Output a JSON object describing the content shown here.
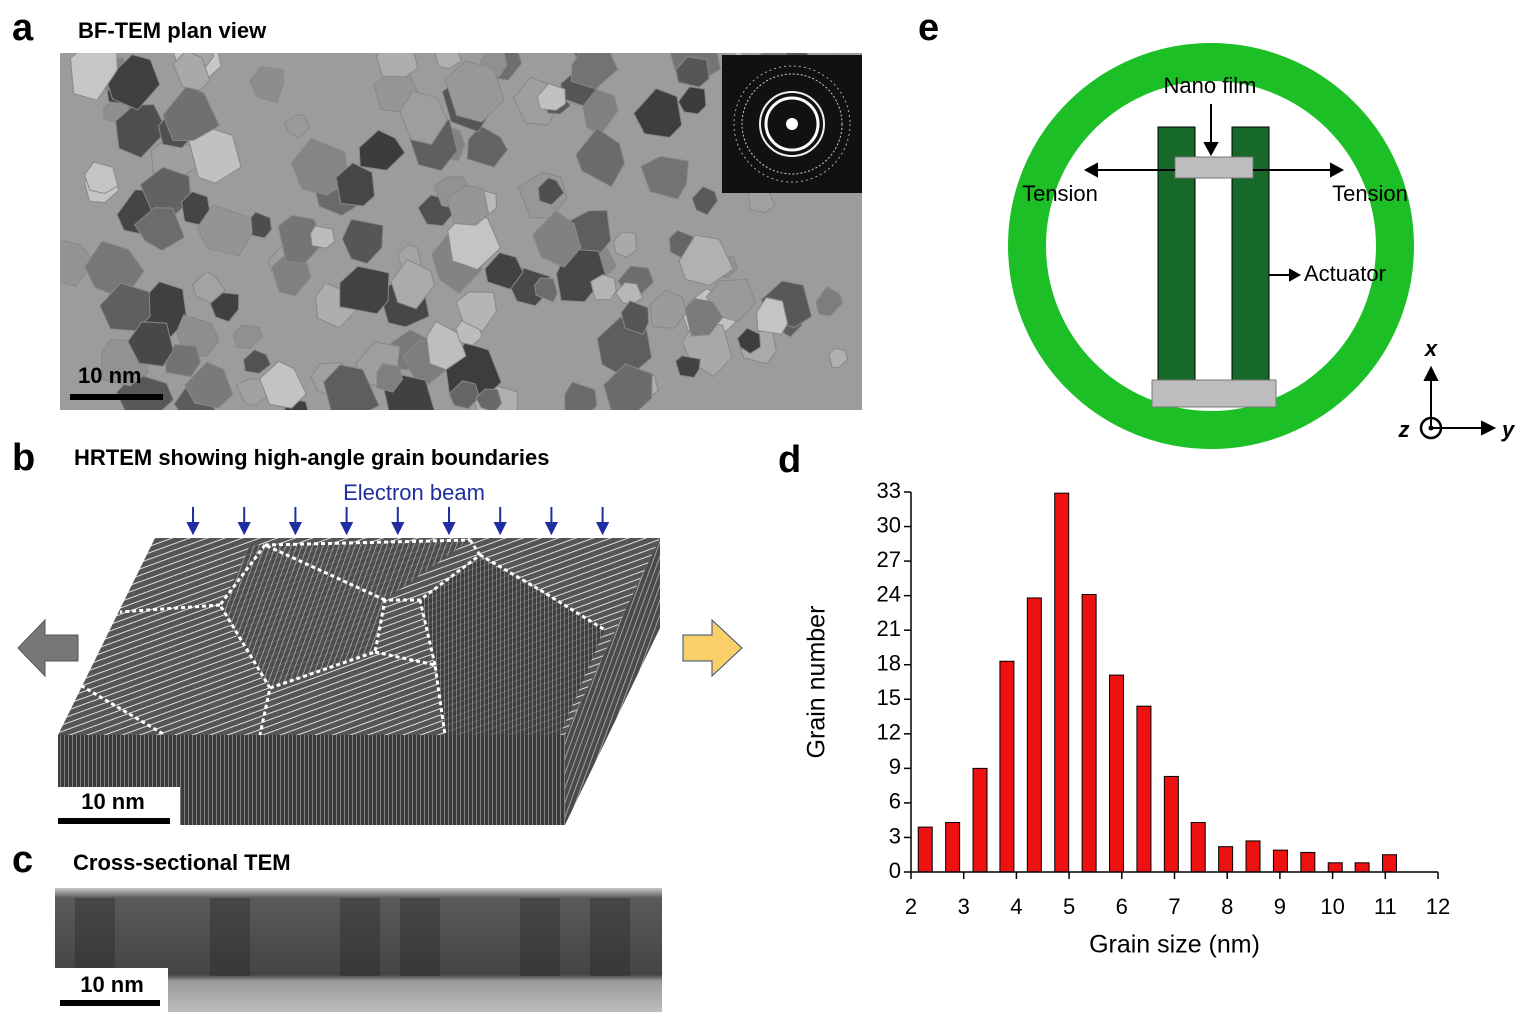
{
  "panels": {
    "a": {
      "label": "a",
      "title": "BF-TEM plan view",
      "scale_bar": "10 nm"
    },
    "b": {
      "label": "b",
      "title": "HRTEM showing high-angle grain boundaries",
      "annotation": "Electron beam",
      "scale_bar": "10 nm"
    },
    "c": {
      "label": "c",
      "title": "Cross-sectional TEM",
      "scale_bar": "10 nm"
    },
    "d": {
      "label": "d"
    },
    "e": {
      "label": "e",
      "film": "Nano film",
      "tension_left": "Tension",
      "tension_right": "Tension",
      "actuator": "Actuator",
      "axis_x": "x",
      "axis_y": "y",
      "axis_z": "z"
    }
  },
  "chart_data": {
    "type": "bar",
    "x_label": "Grain size (nm)",
    "y_label": "Grain number",
    "x": [
      2.27,
      2.79,
      3.31,
      3.82,
      4.34,
      4.86,
      5.38,
      5.9,
      6.42,
      6.94,
      7.45,
      7.97,
      8.49,
      9.01,
      9.53,
      10.05,
      10.56,
      11.08
    ],
    "values": [
      3.9,
      4.3,
      9.0,
      18.3,
      23.8,
      32.9,
      24.1,
      17.1,
      14.4,
      8.3,
      4.3,
      2.2,
      2.7,
      1.9,
      1.7,
      0.8,
      0.8,
      1.5
    ],
    "color": "#ee1111",
    "xlim": [
      2,
      12
    ],
    "xticks": [
      2,
      3,
      4,
      5,
      6,
      7,
      8,
      9,
      10,
      11,
      12
    ],
    "ylim": [
      0,
      33
    ],
    "yticks": [
      0,
      3,
      6,
      9,
      12,
      15,
      18,
      21,
      24,
      27,
      30,
      33
    ]
  }
}
